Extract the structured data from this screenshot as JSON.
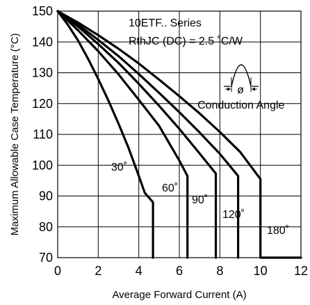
{
  "chart_data": {
    "type": "line",
    "title": "",
    "annotations": {
      "series_title": "10ETF.. Series",
      "rthjc": "RthJC  (DC) = 2.5 ˚C/W",
      "conduction_label": "Conduction Angle",
      "phi_symbol": "ø"
    },
    "xlabel": "Average Forward Current (A)",
    "ylabel": "Maximum Allowable Case Temperature (°C)",
    "xlim": [
      0,
      12
    ],
    "ylim": [
      70,
      150
    ],
    "xticks": [
      "0",
      "2",
      "4",
      "6",
      "8",
      "10",
      "12"
    ],
    "yticks": [
      "70",
      "80",
      "90",
      "100",
      "110",
      "120",
      "130",
      "140",
      "150"
    ],
    "grid": true,
    "series": [
      {
        "name": "30˚",
        "x": [
          0,
          0.5,
          1,
          1.5,
          2,
          2.5,
          3,
          3.5,
          4,
          4.3,
          4.7,
          4.7
        ],
        "y": [
          150,
          145.6,
          140.5,
          134.5,
          128,
          121,
          113.5,
          105.5,
          96.5,
          91,
          88,
          70
        ]
      },
      {
        "name": "60˚",
        "x": [
          0,
          1,
          2,
          3,
          4,
          5,
          6,
          6.4,
          6.4
        ],
        "y": [
          150,
          143.8,
          137,
          129.5,
          121.2,
          112.8,
          101.5,
          96.5,
          70
        ]
      },
      {
        "name": "90˚",
        "x": [
          0,
          1,
          2,
          3,
          4,
          5,
          6,
          7,
          7.8,
          7.8
        ],
        "y": [
          150,
          145,
          139.3,
          133.2,
          126.4,
          119.3,
          111.8,
          103.8,
          97.3,
          70
        ]
      },
      {
        "name": "120˚",
        "x": [
          0,
          1,
          2,
          3,
          4,
          5,
          6,
          7,
          8,
          8.9,
          8.9
        ],
        "y": [
          150,
          145.6,
          140.7,
          135.4,
          129.6,
          123.5,
          117.2,
          110.6,
          103.7,
          96.5,
          70
        ]
      },
      {
        "name": "180˚",
        "x": [
          0,
          1,
          2,
          3,
          4,
          5,
          6,
          7,
          8,
          9,
          10,
          10,
          12
        ],
        "y": [
          150,
          146.3,
          142.2,
          137.8,
          133,
          127.8,
          122.4,
          116.8,
          110.8,
          104.3,
          95.5,
          70,
          70
        ]
      }
    ]
  }
}
